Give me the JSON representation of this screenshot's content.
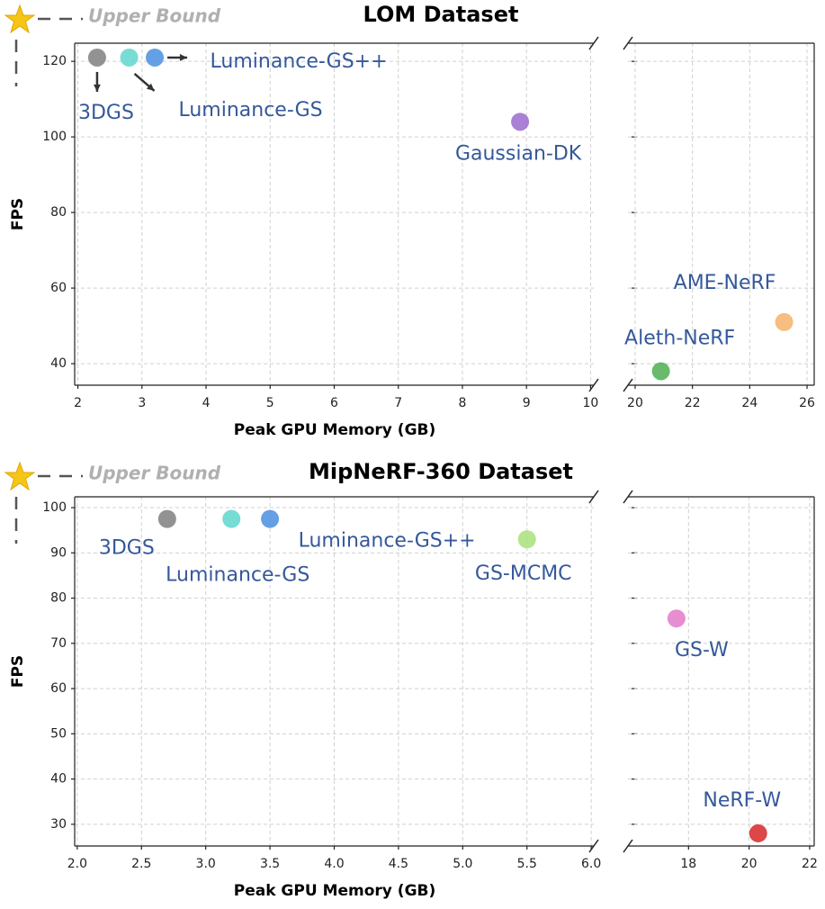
{
  "chart_data": [
    {
      "type": "scatter",
      "title": "LOM Dataset",
      "xlabel": "Peak GPU Memory (GB)",
      "ylabel": "FPS",
      "upper_bound_label": "Upper Bound",
      "panels": [
        {
          "xlim": [
            1.95,
            10.05
          ],
          "xticks": [
            2,
            3,
            4,
            5,
            6,
            7,
            8,
            9,
            10
          ]
        },
        {
          "xlim": [
            19.75,
            26.25
          ],
          "xticks": [
            20,
            22,
            24,
            26
          ]
        }
      ],
      "ylim": [
        34.3,
        124.8
      ],
      "yticks": [
        40,
        60,
        80,
        100,
        120
      ],
      "grid": true,
      "series": [
        {
          "name": "3DGS",
          "color": "#7f7f7f",
          "x": [
            2.3
          ],
          "values": [
            121
          ]
        },
        {
          "name": "Luminance-GS",
          "color": "#5fd6cc",
          "x": [
            2.8
          ],
          "values": [
            121
          ]
        },
        {
          "name": "Luminance-GS++",
          "color": "#4a8fe0",
          "x": [
            3.2
          ],
          "values": [
            121
          ]
        },
        {
          "name": "Gaussian-DK",
          "color": "#9b6bcc",
          "x": [
            8.9
          ],
          "values": [
            104
          ]
        },
        {
          "name": "Aleth-NeRF",
          "color": "#4caf50",
          "x": [
            20.9
          ],
          "values": [
            38
          ]
        },
        {
          "name": "AME-NeRF",
          "color": "#f5b36a",
          "x": [
            25.2
          ],
          "values": [
            51
          ]
        }
      ]
    },
    {
      "type": "scatter",
      "title": "MipNeRF-360 Dataset",
      "xlabel": "Peak GPU Memory (GB)",
      "ylabel": "FPS",
      "upper_bound_label": "Upper Bound",
      "panels": [
        {
          "xlim": [
            1.98,
            6.02
          ],
          "xticks": [
            {
              "value": 2,
              "label": "2.0"
            },
            2.5,
            {
              "value": 3,
              "label": "3.0"
            },
            3.5,
            {
              "value": 4,
              "label": "4.0"
            },
            4.5,
            {
              "value": 5,
              "label": "5.0"
            },
            5.5,
            {
              "value": 6,
              "label": "6.0"
            }
          ]
        },
        {
          "xlim": [
            16,
            22.15
          ],
          "xticks": [
            18,
            20,
            22
          ]
        }
      ],
      "ylim": [
        25.2,
        102.4
      ],
      "yticks": [
        30,
        40,
        50,
        60,
        70,
        80,
        90,
        100
      ],
      "grid": true,
      "series": [
        {
          "name": "3DGS",
          "color": "#7f7f7f",
          "x": [
            2.7
          ],
          "values": [
            97.5
          ]
        },
        {
          "name": "Luminance-GS",
          "color": "#5fd6cc",
          "x": [
            3.2
          ],
          "values": [
            97.5
          ]
        },
        {
          "name": "Luminance-GS++",
          "color": "#4a8fe0",
          "x": [
            3.5
          ],
          "values": [
            97.5
          ]
        },
        {
          "name": "GS-MCMC",
          "color": "#a8e07a",
          "x": [
            5.5
          ],
          "values": [
            93
          ]
        },
        {
          "name": "GS-W",
          "color": "#e27ac8",
          "x": [
            17.6
          ],
          "values": [
            75.5
          ]
        },
        {
          "name": "NeRF-W",
          "color": "#d62728",
          "x": [
            20.3
          ],
          "values": [
            28
          ]
        }
      ]
    }
  ]
}
